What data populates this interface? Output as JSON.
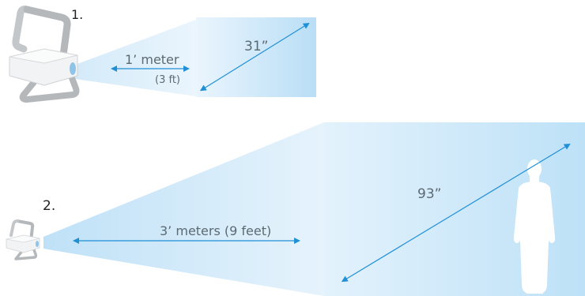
{
  "steps": [
    {
      "number": "1.",
      "screen_size": "31”",
      "distance_line1": "1’ meter",
      "distance_line2": "(3 ft)"
    },
    {
      "number": "2.",
      "screen_size": "93”",
      "distance_line1": "3’ meters (9 feet)"
    }
  ],
  "colors": {
    "beam": "#d7ecfb",
    "screen": "#bfe0f7",
    "arrow": "#1f8fd6",
    "text": "#5c6a72",
    "projector_frame": "#b9bcbf",
    "silhouette": "#ffffff"
  }
}
